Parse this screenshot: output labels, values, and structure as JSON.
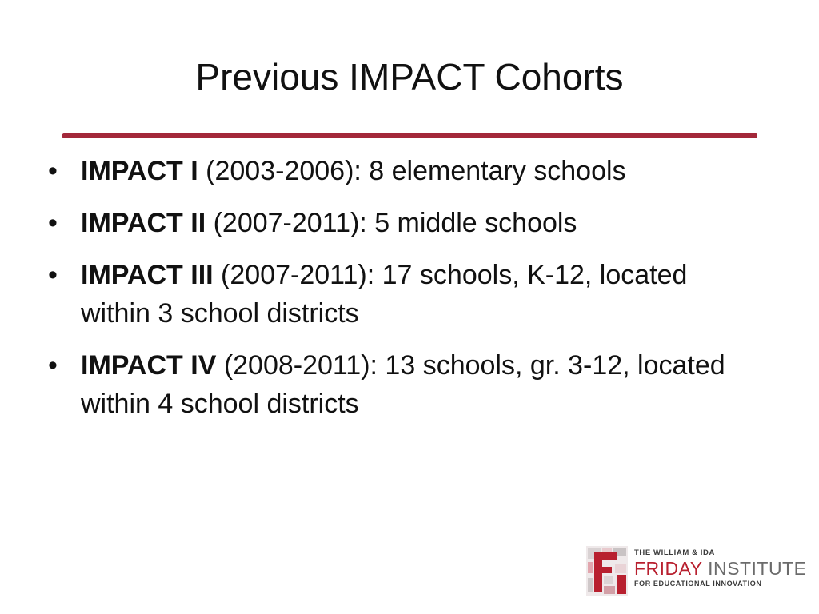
{
  "slide": {
    "title": "Previous IMPACT Cohorts",
    "rule_color": "#a3283a",
    "bullet_char": "•",
    "bullets": [
      {
        "bold": "IMPACT I",
        "text": " (2003-2006): 8 elementary schools"
      },
      {
        "bold": "IMPACT II",
        "text": " (2007-2011): 5 middle schools"
      },
      {
        "bold": "IMPACT III",
        "text": " (2007-2011): 17 schools, K-12, located within 3 school districts"
      },
      {
        "bold": "IMPACT IV",
        "text": " (2008-2011): 13 schools, gr. 3-12, located within 4 school districts"
      }
    ]
  },
  "logo": {
    "line1": "THE WILLIAM & IDA",
    "friday": "FRIDAY",
    "institute": " INSTITUTE",
    "line3": "FOR EDUCATIONAL INNOVATION",
    "icon": "friday-institute-logo-icon",
    "red": "#b8202f",
    "gray": "#6b6b6b"
  }
}
